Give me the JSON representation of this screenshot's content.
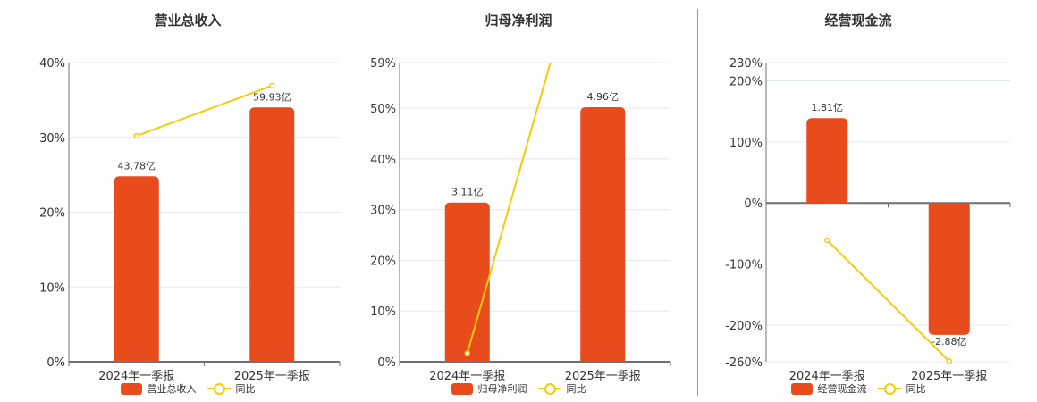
{
  "colors": {
    "bar": "#e84c1c",
    "line": "#f2cc0c",
    "grid": "#e3e8f0",
    "axis": "#6e7079"
  },
  "legend": {
    "yoy_label": "同比"
  },
  "chart_data": [
    {
      "type": "bar+line",
      "title": "营业总收入",
      "categories": [
        "2024年一季报",
        "2025年一季报"
      ],
      "series": [
        {
          "name": "营业总收入",
          "type": "bar",
          "values": [
            43.78,
            59.93
          ],
          "unit": "亿",
          "labels": [
            "43.78亿",
            "59.93亿"
          ],
          "bar_pct_position": [
            24.8,
            34.0
          ]
        },
        {
          "name": "同比",
          "type": "line",
          "values": [
            30.2,
            36.9
          ],
          "unit": "%"
        }
      ],
      "yticks": [
        "0%",
        "10%",
        "20%",
        "30%",
        "40%"
      ],
      "ylim": [
        0,
        40
      ],
      "grid": true,
      "legend_position": "bottom"
    },
    {
      "type": "bar+line",
      "title": "归母净利润",
      "categories": [
        "2024年一季报",
        "2025年一季报"
      ],
      "series": [
        {
          "name": "归母净利润",
          "type": "bar",
          "values": [
            3.11,
            4.96
          ],
          "unit": "亿",
          "labels": [
            "3.11亿",
            "4.96亿"
          ],
          "bar_pct_position": [
            31.4,
            50.2
          ]
        },
        {
          "name": "同比",
          "type": "line",
          "values": [
            1.7,
            95.0
          ],
          "unit": "%",
          "note": "second point exceeds axis max (line clipped at top)"
        }
      ],
      "yticks": [
        "0%",
        "10%",
        "20%",
        "30%",
        "40%",
        "50%",
        "59%"
      ],
      "ylim": [
        0,
        59
      ],
      "grid": true,
      "legend_position": "bottom"
    },
    {
      "type": "bar+line",
      "title": "经营现金流",
      "categories": [
        "2024年一季报",
        "2025年一季报"
      ],
      "series": [
        {
          "name": "经营现金流",
          "type": "bar",
          "values": [
            1.81,
            -2.88
          ],
          "unit": "亿",
          "labels": [
            "1.81亿",
            "-2.88亿"
          ],
          "bar_pct_position": [
            139,
            -216
          ]
        },
        {
          "name": "同比",
          "type": "line",
          "values": [
            -61,
            -259
          ],
          "unit": "%"
        }
      ],
      "yticks": [
        "-260%",
        "-200%",
        "-100%",
        "0%",
        "100%",
        "200%",
        "230%"
      ],
      "ylim": [
        -260,
        230
      ],
      "grid": true,
      "legend_position": "bottom"
    }
  ]
}
